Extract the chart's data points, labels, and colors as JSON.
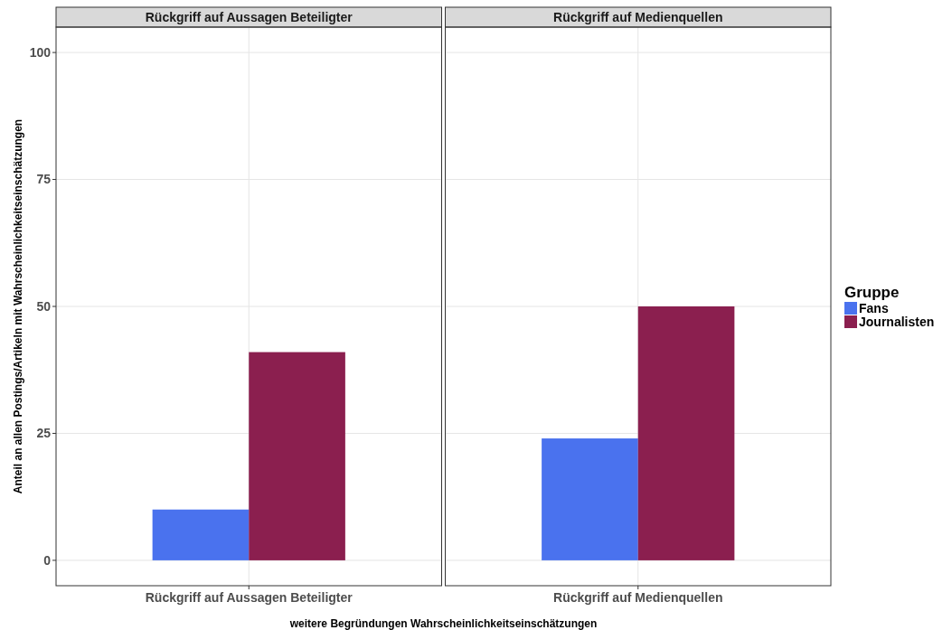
{
  "chart_data": {
    "type": "bar",
    "categories": [
      "Rückgriff auf Aussagen Beteiligter",
      "Rückgriff auf Medienquellen"
    ],
    "annotations": [
      "Rückgriff auf Aussagen Beteiligter",
      "Rückgriff auf Medienquellen"
    ],
    "xlabel": "weitere Begründungen Wahrscheinlichkeitseinschätzungen",
    "ylabel": "Anteil an allen Postings/Artikeln mit Wahrscheinlichkeitseinschätzungen",
    "legend_title": "Gruppe",
    "series": [
      {
        "name": "Fans",
        "color": "#4a72ee",
        "values": [
          10,
          24
        ]
      },
      {
        "name": "Journalisten",
        "color": "#8b1f4f",
        "values": [
          41,
          50
        ]
      }
    ],
    "ylim": [
      -5,
      105
    ],
    "yticks": [
      0,
      25,
      50,
      75,
      100
    ],
    "grid": true,
    "legend": "right"
  }
}
